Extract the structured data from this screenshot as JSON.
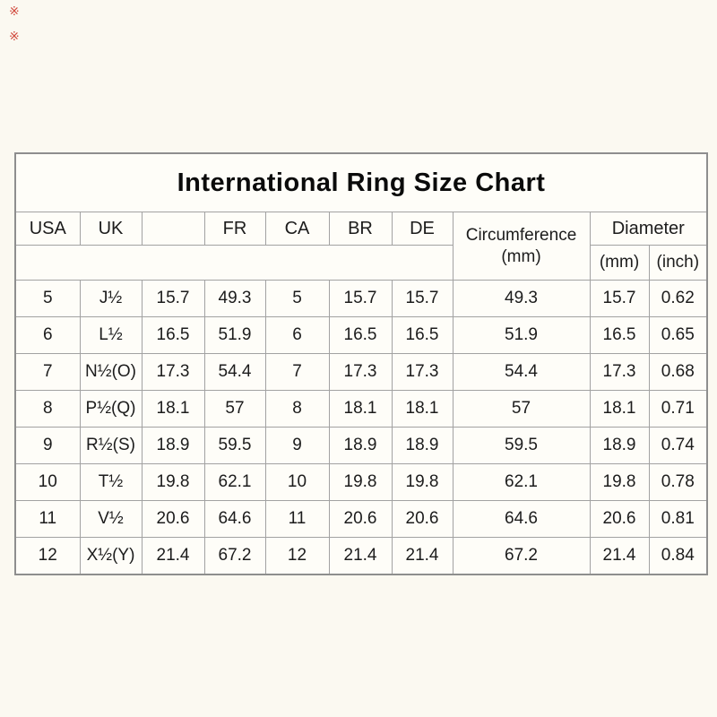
{
  "page": {
    "background": "#fbf9f1",
    "table_background": "#fefdf8",
    "border_color": "#a2a2a2",
    "text_color": "#1c1c1c"
  },
  "watermark": {
    "color": "#cc372a",
    "marks": [
      "※",
      "※"
    ]
  },
  "chart_data": {
    "type": "table",
    "title": "International Ring Size Chart",
    "header": {
      "col_usa": "USA",
      "col_uk": "UK",
      "col_blank": "",
      "col_fr": "FR",
      "col_ca": "CA",
      "col_br": "BR",
      "col_de": "DE",
      "circumference_line1": "Circumference",
      "circumference_line2": "(mm)",
      "diameter": "Diameter",
      "diameter_mm": "(mm)",
      "diameter_inch": "(inch)"
    },
    "columns": [
      "USA",
      "UK",
      "",
      "FR",
      "CA",
      "BR",
      "DE",
      "Circumference (mm)",
      "Diameter (mm)",
      "Diameter (inch)"
    ],
    "rows": [
      [
        "5",
        "J½",
        "15.7",
        "49.3",
        "5",
        "15.7",
        "15.7",
        "49.3",
        "15.7",
        "0.62"
      ],
      [
        "6",
        "L½",
        "16.5",
        "51.9",
        "6",
        "16.5",
        "16.5",
        "51.9",
        "16.5",
        "0.65"
      ],
      [
        "7",
        "N½(O)",
        "17.3",
        "54.4",
        "7",
        "17.3",
        "17.3",
        "54.4",
        "17.3",
        "0.68"
      ],
      [
        "8",
        "P½(Q)",
        "18.1",
        "57",
        "8",
        "18.1",
        "18.1",
        "57",
        "18.1",
        "0.71"
      ],
      [
        "9",
        "R½(S)",
        "18.9",
        "59.5",
        "9",
        "18.9",
        "18.9",
        "59.5",
        "18.9",
        "0.74"
      ],
      [
        "10",
        "T½",
        "19.8",
        "62.1",
        "10",
        "19.8",
        "19.8",
        "62.1",
        "19.8",
        "0.78"
      ],
      [
        "11",
        "V½",
        "20.6",
        "64.6",
        "11",
        "20.6",
        "20.6",
        "64.6",
        "20.6",
        "0.81"
      ],
      [
        "12",
        "X½(Y)",
        "21.4",
        "67.2",
        "12",
        "21.4",
        "21.4",
        "67.2",
        "21.4",
        "0.84"
      ]
    ]
  }
}
